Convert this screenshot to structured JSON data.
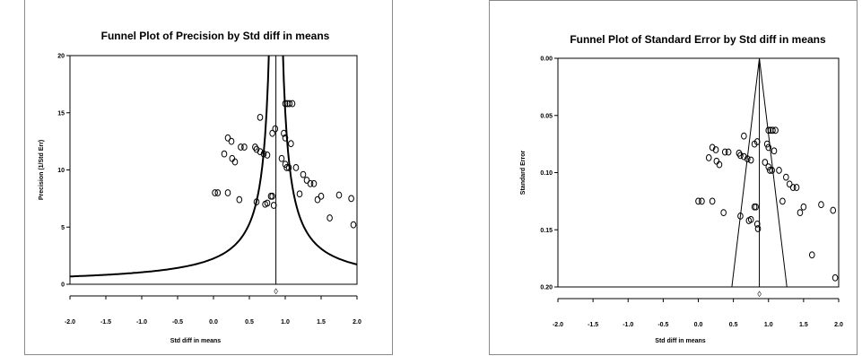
{
  "chart_data": [
    {
      "type": "scatter",
      "title": "Funnel Plot of Precision by Std diff in means",
      "xlabel": "Std diff in means",
      "ylabel": "Precision (1/Std Err)",
      "xlim": [
        -2.0,
        2.0
      ],
      "ylim": [
        0,
        20
      ],
      "x_ticks": [
        "-2.0",
        "-1.5",
        "-1.0",
        "-0.5",
        "0.0",
        "0.5",
        "1.0",
        "1.5",
        "2.0"
      ],
      "y_ticks": [
        "0",
        "5",
        "10",
        "15",
        "20"
      ],
      "combined_estimate": 0.87,
      "diamond_marker": "◊",
      "points": [
        [
          0.02,
          8.0
        ],
        [
          0.06,
          8.0
        ],
        [
          0.2,
          8.0
        ],
        [
          0.36,
          7.4
        ],
        [
          0.6,
          7.2
        ],
        [
          0.15,
          11.4
        ],
        [
          0.26,
          11.0
        ],
        [
          0.3,
          10.7
        ],
        [
          0.2,
          12.8
        ],
        [
          0.25,
          12.5
        ],
        [
          0.38,
          12.0
        ],
        [
          0.43,
          12.0
        ],
        [
          0.58,
          12.0
        ],
        [
          0.6,
          11.8
        ],
        [
          0.65,
          11.6
        ],
        [
          0.7,
          11.4
        ],
        [
          0.75,
          11.3
        ],
        [
          0.65,
          14.6
        ],
        [
          0.72,
          7.0
        ],
        [
          0.75,
          7.1
        ],
        [
          0.8,
          7.7
        ],
        [
          0.82,
          7.7
        ],
        [
          0.84,
          6.9
        ],
        [
          0.82,
          13.2
        ],
        [
          0.86,
          13.6
        ],
        [
          0.95,
          11.0
        ],
        [
          1.0,
          10.5
        ],
        [
          1.02,
          10.2
        ],
        [
          1.05,
          10.2
        ],
        [
          1.0,
          12.8
        ],
        [
          0.98,
          13.2
        ],
        [
          1.08,
          12.3
        ],
        [
          1.0,
          15.8
        ],
        [
          1.03,
          15.8
        ],
        [
          1.06,
          15.8
        ],
        [
          1.1,
          15.8
        ],
        [
          1.15,
          10.2
        ],
        [
          1.25,
          9.6
        ],
        [
          1.3,
          9.1
        ],
        [
          1.35,
          8.8
        ],
        [
          1.4,
          8.8
        ],
        [
          1.45,
          7.4
        ],
        [
          1.5,
          7.7
        ],
        [
          1.62,
          5.8
        ],
        [
          1.75,
          7.8
        ],
        [
          1.92,
          7.5
        ],
        [
          1.95,
          5.2
        ],
        [
          1.2,
          7.9
        ]
      ]
    },
    {
      "type": "scatter",
      "title": "Funnel Plot of Standard Error by Std diff in means",
      "xlabel": "Std diff in means",
      "ylabel": "Standard Error",
      "xlim": [
        -2.0,
        2.0
      ],
      "ylim": [
        0.0,
        0.2
      ],
      "y_inverted": true,
      "x_ticks": [
        "-2.0",
        "-1.5",
        "-1.0",
        "-0.5",
        "0.0",
        "0.5",
        "1.0",
        "1.5",
        "2.0"
      ],
      "y_ticks": [
        "0.00",
        "0.05",
        "0.10",
        "0.15",
        "0.20"
      ],
      "combined_estimate": 0.87,
      "diamond_marker": "◊",
      "points": [
        [
          0.0,
          0.125
        ],
        [
          0.05,
          0.125
        ],
        [
          0.2,
          0.125
        ],
        [
          0.36,
          0.135
        ],
        [
          0.6,
          0.138
        ],
        [
          0.15,
          0.087
        ],
        [
          0.26,
          0.09
        ],
        [
          0.3,
          0.093
        ],
        [
          0.2,
          0.078
        ],
        [
          0.25,
          0.08
        ],
        [
          0.38,
          0.082
        ],
        [
          0.43,
          0.082
        ],
        [
          0.58,
          0.083
        ],
        [
          0.6,
          0.085
        ],
        [
          0.65,
          0.086
        ],
        [
          0.7,
          0.088
        ],
        [
          0.75,
          0.089
        ],
        [
          0.65,
          0.068
        ],
        [
          0.72,
          0.142
        ],
        [
          0.75,
          0.141
        ],
        [
          0.8,
          0.13
        ],
        [
          0.82,
          0.13
        ],
        [
          0.84,
          0.145
        ],
        [
          0.8,
          0.075
        ],
        [
          0.84,
          0.073
        ],
        [
          0.95,
          0.091
        ],
        [
          1.0,
          0.095
        ],
        [
          1.02,
          0.098
        ],
        [
          1.05,
          0.098
        ],
        [
          1.0,
          0.078
        ],
        [
          0.98,
          0.075
        ],
        [
          1.08,
          0.081
        ],
        [
          1.0,
          0.063
        ],
        [
          1.03,
          0.063
        ],
        [
          1.06,
          0.063
        ],
        [
          1.1,
          0.063
        ],
        [
          1.15,
          0.098
        ],
        [
          1.2,
          0.125
        ],
        [
          1.25,
          0.104
        ],
        [
          1.3,
          0.11
        ],
        [
          1.35,
          0.113
        ],
        [
          1.4,
          0.113
        ],
        [
          1.45,
          0.135
        ],
        [
          1.5,
          0.13
        ],
        [
          1.62,
          0.172
        ],
        [
          1.75,
          0.128
        ],
        [
          1.92,
          0.133
        ],
        [
          1.95,
          0.192
        ],
        [
          0.85,
          0.149
        ]
      ]
    }
  ]
}
